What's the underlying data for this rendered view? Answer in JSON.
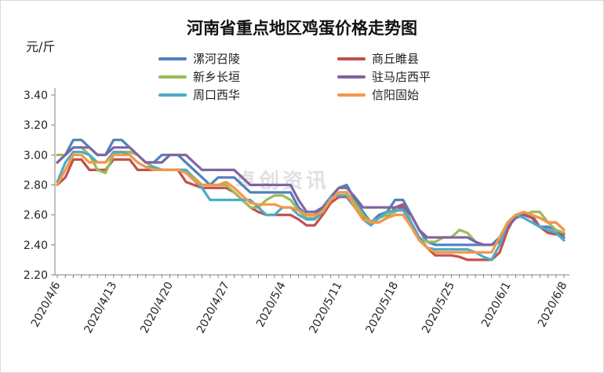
{
  "chart_data": {
    "type": "line",
    "title": "河南省重点地区鸡蛋价格走势图",
    "ylabel": "元/斤",
    "xlabel": "",
    "ylim": [
      2.2,
      3.4
    ],
    "yticks": [
      "2.20",
      "2.40",
      "2.60",
      "2.80",
      "3.00",
      "3.20",
      "3.40"
    ],
    "x_tick_labels": [
      "2020/4/6",
      "2020/4/13",
      "2020/4/20",
      "2020/4/27",
      "2020/5/4",
      "2020/5/11",
      "2020/5/18",
      "2020/5/25",
      "2020/6/1",
      "2020/6/8"
    ],
    "dates": [
      "4/6",
      "4/7",
      "4/8",
      "4/9",
      "4/10",
      "4/11",
      "4/12",
      "4/13",
      "4/14",
      "4/15",
      "4/16",
      "4/17",
      "4/18",
      "4/19",
      "4/20",
      "4/21",
      "4/22",
      "4/23",
      "4/24",
      "4/25",
      "4/26",
      "4/27",
      "4/28",
      "4/29",
      "4/30",
      "5/1",
      "5/2",
      "5/3",
      "5/4",
      "5/5",
      "5/6",
      "5/7",
      "5/8",
      "5/9",
      "5/10",
      "5/11",
      "5/12",
      "5/13",
      "5/14",
      "5/15",
      "5/16",
      "5/17",
      "5/18",
      "5/19",
      "5/20",
      "5/21",
      "5/22",
      "5/23",
      "5/24",
      "5/25",
      "5/26",
      "5/27",
      "5/28",
      "5/29",
      "5/30",
      "5/31",
      "6/1",
      "6/2",
      "6/3",
      "6/4",
      "6/5",
      "6/6",
      "6/7",
      "6/8"
    ],
    "grid": false,
    "legend_position": "top",
    "series": [
      {
        "name": "漯河召陵",
        "color": "#4f81bd",
        "values": [
          2.95,
          3.0,
          3.1,
          3.1,
          3.05,
          3.0,
          3.0,
          3.1,
          3.1,
          3.05,
          3.0,
          2.95,
          2.95,
          3.0,
          3.0,
          3.0,
          2.95,
          2.9,
          2.85,
          2.8,
          2.85,
          2.85,
          2.85,
          2.8,
          2.75,
          2.75,
          2.75,
          2.75,
          2.75,
          2.75,
          2.65,
          2.6,
          2.6,
          2.65,
          2.72,
          2.78,
          2.8,
          2.7,
          2.62,
          2.55,
          2.6,
          2.62,
          2.7,
          2.7,
          2.6,
          2.5,
          2.42,
          2.4,
          2.4,
          2.4,
          2.4,
          2.4,
          2.4,
          2.4,
          2.4,
          2.45,
          2.55,
          2.6,
          2.6,
          2.6,
          2.52,
          2.52,
          2.5,
          2.45
        ]
      },
      {
        "name": "商丘睢县",
        "color": "#c0504d",
        "values": [
          2.8,
          2.85,
          2.97,
          2.97,
          2.9,
          2.9,
          2.9,
          2.97,
          2.97,
          2.97,
          2.9,
          2.9,
          2.9,
          2.9,
          2.9,
          2.9,
          2.82,
          2.8,
          2.78,
          2.78,
          2.78,
          2.78,
          2.75,
          2.7,
          2.65,
          2.62,
          2.6,
          2.6,
          2.6,
          2.6,
          2.57,
          2.53,
          2.53,
          2.6,
          2.68,
          2.72,
          2.72,
          2.65,
          2.58,
          2.55,
          2.55,
          2.58,
          2.65,
          2.67,
          2.55,
          2.45,
          2.38,
          2.33,
          2.33,
          2.33,
          2.32,
          2.3,
          2.3,
          2.3,
          2.3,
          2.35,
          2.5,
          2.6,
          2.6,
          2.58,
          2.52,
          2.48,
          2.47,
          2.47
        ]
      },
      {
        "name": "新乡长垣",
        "color": "#9bbb59",
        "values": [
          3.0,
          3.0,
          3.05,
          3.05,
          3.0,
          2.9,
          2.88,
          3.0,
          3.02,
          3.02,
          3.0,
          2.95,
          2.92,
          2.9,
          2.9,
          2.9,
          2.9,
          2.85,
          2.8,
          2.8,
          2.8,
          2.8,
          2.75,
          2.7,
          2.65,
          2.65,
          2.7,
          2.73,
          2.73,
          2.7,
          2.63,
          2.58,
          2.58,
          2.63,
          2.7,
          2.75,
          2.75,
          2.68,
          2.6,
          2.55,
          2.58,
          2.6,
          2.62,
          2.65,
          2.55,
          2.45,
          2.42,
          2.42,
          2.45,
          2.45,
          2.5,
          2.48,
          2.42,
          2.4,
          2.4,
          2.42,
          2.55,
          2.58,
          2.6,
          2.62,
          2.62,
          2.55,
          2.5,
          2.48
        ]
      },
      {
        "name": "驻马店西平",
        "color": "#8064a2",
        "values": [
          2.95,
          3.0,
          3.05,
          3.05,
          3.05,
          3.0,
          3.0,
          3.05,
          3.05,
          3.05,
          3.0,
          2.95,
          2.95,
          2.95,
          3.0,
          3.0,
          3.0,
          2.95,
          2.9,
          2.9,
          2.9,
          2.9,
          2.9,
          2.85,
          2.8,
          2.8,
          2.8,
          2.8,
          2.8,
          2.8,
          2.7,
          2.62,
          2.62,
          2.65,
          2.72,
          2.78,
          2.78,
          2.72,
          2.65,
          2.65,
          2.65,
          2.65,
          2.65,
          2.65,
          2.6,
          2.5,
          2.45,
          2.45,
          2.45,
          2.45,
          2.45,
          2.45,
          2.42,
          2.4,
          2.4,
          2.42,
          2.52,
          2.58,
          2.6,
          2.6,
          2.58,
          2.55,
          2.55,
          2.5
        ]
      },
      {
        "name": "周口西华",
        "color": "#4bacc6",
        "values": [
          2.82,
          2.95,
          3.02,
          3.02,
          3.0,
          2.95,
          2.95,
          3.02,
          3.02,
          3.0,
          2.95,
          2.92,
          2.92,
          2.9,
          2.9,
          2.9,
          2.9,
          2.83,
          2.78,
          2.7,
          2.7,
          2.7,
          2.7,
          2.7,
          2.7,
          2.65,
          2.6,
          2.6,
          2.65,
          2.65,
          2.6,
          2.57,
          2.57,
          2.62,
          2.72,
          2.73,
          2.73,
          2.65,
          2.57,
          2.53,
          2.58,
          2.62,
          2.63,
          2.63,
          2.55,
          2.45,
          2.38,
          2.37,
          2.37,
          2.37,
          2.37,
          2.37,
          2.35,
          2.32,
          2.3,
          2.4,
          2.55,
          2.6,
          2.58,
          2.55,
          2.52,
          2.5,
          2.48,
          2.43
        ]
      },
      {
        "name": "信阳固始",
        "color": "#f79646",
        "values": [
          2.8,
          2.9,
          3.0,
          3.0,
          2.95,
          2.95,
          2.95,
          3.0,
          3.0,
          3.0,
          2.95,
          2.92,
          2.9,
          2.9,
          2.9,
          2.9,
          2.88,
          2.83,
          2.8,
          2.8,
          2.8,
          2.82,
          2.78,
          2.73,
          2.68,
          2.67,
          2.67,
          2.67,
          2.65,
          2.65,
          2.63,
          2.6,
          2.6,
          2.62,
          2.7,
          2.75,
          2.75,
          2.65,
          2.57,
          2.55,
          2.55,
          2.58,
          2.6,
          2.6,
          2.52,
          2.43,
          2.38,
          2.35,
          2.35,
          2.35,
          2.35,
          2.35,
          2.35,
          2.35,
          2.35,
          2.45,
          2.55,
          2.6,
          2.62,
          2.6,
          2.58,
          2.55,
          2.55,
          2.5
        ]
      }
    ]
  },
  "watermark": "卓创资讯"
}
